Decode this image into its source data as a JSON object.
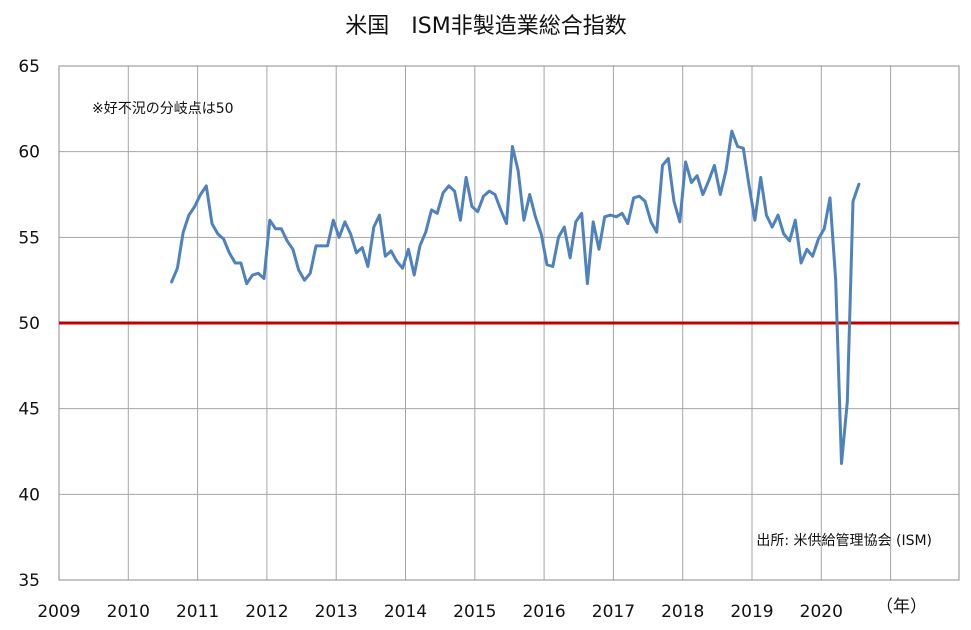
{
  "chart_data": {
    "type": "line",
    "title": "米国　ISM非製造業総合指数",
    "xlabel": "",
    "ylabel": "",
    "x_unit_label": "（年）",
    "x_ticks": [
      "2009",
      "2010",
      "2011",
      "2012",
      "2013",
      "2014",
      "2015",
      "2016",
      "2017",
      "2018",
      "2019",
      "2020"
    ],
    "xlim": [
      2009,
      2020.999
    ],
    "ylim": [
      35,
      65
    ],
    "y_ticks": [
      35,
      40,
      45,
      50,
      55,
      60,
      65
    ],
    "grid": true,
    "legend": "none",
    "annotation_top": "※好不況の分岐点は50",
    "annotation_bottom": "出所: 米供給管理協会 (ISM)",
    "reference_line": {
      "y": 50,
      "color": "#c00000"
    },
    "series": [
      {
        "color": "#4f81bd",
        "x": [
          2010.625,
          2010.708,
          2010.792,
          2010.875,
          2010.958,
          2011.042,
          2011.125,
          2011.208,
          2011.292,
          2011.375,
          2011.458,
          2011.542,
          2011.625,
          2011.708,
          2011.792,
          2011.875,
          2011.958,
          2012.042,
          2012.125,
          2012.208,
          2012.292,
          2012.375,
          2012.458,
          2012.542,
          2012.625,
          2012.708,
          2012.792,
          2012.875,
          2012.958,
          2013.042,
          2013.125,
          2013.208,
          2013.292,
          2013.375,
          2013.458,
          2013.542,
          2013.625,
          2013.708,
          2013.792,
          2013.875,
          2013.958,
          2014.042,
          2014.125,
          2014.208,
          2014.292,
          2014.375,
          2014.458,
          2014.542,
          2014.625,
          2014.708,
          2014.792,
          2014.875,
          2014.958,
          2015.042,
          2015.125,
          2015.208,
          2015.292,
          2015.375,
          2015.458,
          2015.542,
          2015.625,
          2015.708,
          2015.792,
          2015.875,
          2015.958,
          2016.042,
          2016.125,
          2016.208,
          2016.292,
          2016.375,
          2016.458,
          2016.542,
          2016.625,
          2016.708,
          2016.792,
          2016.875,
          2016.958,
          2017.042,
          2017.125,
          2017.208,
          2017.292,
          2017.375,
          2017.458,
          2017.542,
          2017.625,
          2017.708,
          2017.792,
          2017.875,
          2017.958,
          2018.042,
          2018.125,
          2018.208,
          2018.292,
          2018.375,
          2018.458,
          2018.542,
          2018.625,
          2018.708,
          2018.792,
          2018.875,
          2018.958,
          2019.042,
          2019.125,
          2019.208,
          2019.292,
          2019.375,
          2019.458,
          2019.542,
          2019.625,
          2019.708,
          2019.792,
          2019.875,
          2019.958,
          2020.042,
          2020.125,
          2020.208,
          2020.292,
          2020.375,
          2020.458,
          2020.542
        ],
        "y": [
          52.4,
          53.2,
          55.3,
          56.3,
          56.8,
          57.5,
          58.0,
          55.8,
          55.2,
          54.9,
          54.1,
          53.5,
          53.5,
          52.3,
          52.8,
          52.9,
          52.6,
          56.0,
          55.5,
          55.5,
          54.8,
          54.3,
          53.1,
          52.5,
          52.9,
          54.5,
          54.5,
          54.5,
          56.0,
          55.0,
          55.9,
          55.2,
          54.1,
          54.4,
          53.3,
          55.6,
          56.3,
          53.9,
          54.2,
          53.6,
          53.2,
          54.3,
          52.8,
          54.5,
          55.3,
          56.6,
          56.4,
          57.6,
          58.0,
          57.7,
          56.0,
          58.5,
          56.8,
          56.5,
          57.4,
          57.7,
          57.5,
          56.6,
          55.8,
          60.3,
          58.9,
          56.0,
          57.5,
          56.2,
          55.2,
          53.4,
          53.3,
          55.0,
          55.6,
          53.8,
          55.9,
          56.4,
          52.3,
          55.9,
          54.3,
          56.2,
          56.3,
          56.2,
          56.4,
          55.8,
          57.3,
          57.4,
          57.1,
          55.9,
          55.3,
          59.2,
          59.6,
          57.1,
          55.9,
          59.4,
          58.2,
          58.6,
          57.5,
          58.3,
          59.2,
          57.5,
          58.9,
          61.2,
          60.3,
          60.2,
          58.0,
          56.0,
          58.5,
          56.3,
          55.6,
          56.3,
          55.2,
          54.8,
          56.0,
          53.5,
          54.3,
          53.9,
          54.9,
          55.5,
          57.3,
          52.5,
          41.8,
          45.4,
          57.1,
          58.1
        ]
      }
    ]
  }
}
